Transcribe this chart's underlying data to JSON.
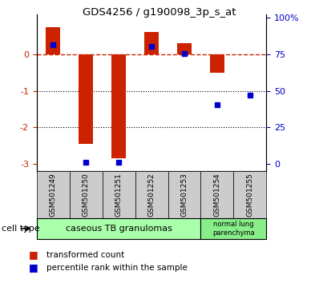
{
  "title": "GDS4256 / g190098_3p_s_at",
  "samples": [
    "GSM501249",
    "GSM501250",
    "GSM501251",
    "GSM501252",
    "GSM501253",
    "GSM501254",
    "GSM501255"
  ],
  "red_bars": [
    0.75,
    -2.45,
    -2.85,
    0.62,
    0.3,
    -0.5,
    0.0
  ],
  "blue_squares_y": [
    0.27,
    -2.95,
    -2.95,
    0.22,
    0.02,
    -1.38,
    -1.12
  ],
  "ylim": [
    -3.2,
    1.1
  ],
  "yticks_left": [
    -3,
    -2,
    -1,
    0
  ],
  "yticks_right_vals": [
    0,
    25,
    50,
    75,
    100
  ],
  "yticks_right_pos": [
    -3.0,
    -2.0,
    -1.0,
    0.0,
    1.0
  ],
  "red_color": "#cc2200",
  "blue_color": "#0000cc",
  "legend_red": "transformed count",
  "legend_blue": "percentile rank within the sample",
  "cell_type_label": "cell type",
  "group1_color": "#aaffaa",
  "group2_color": "#88ee88",
  "sample_box_color": "#cccccc"
}
